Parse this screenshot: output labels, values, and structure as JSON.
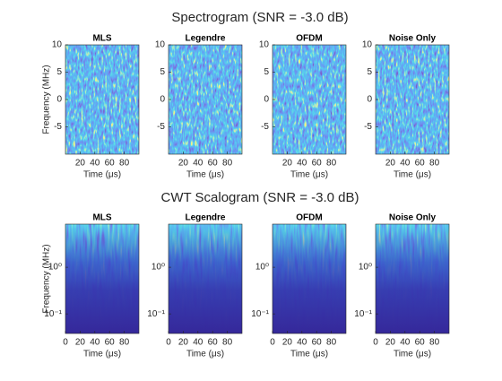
{
  "chart_data": [
    {
      "type": "heatmap",
      "title": "Spectrogram (SNR = -3.0 dB)",
      "subplots": [
        "MLS",
        "Legendre",
        "OFDM",
        "Noise Only"
      ],
      "xlabel": "Time (μs)",
      "ylabel": "Frequency (MHz)",
      "xlim": [
        0,
        100
      ],
      "xticks": [
        20,
        40,
        60,
        80
      ],
      "ylim": [
        -10,
        10
      ],
      "yticks": [
        -5,
        0,
        5,
        10
      ],
      "log_y": false
    },
    {
      "type": "heatmap",
      "title": "CWT Scalogram (SNR = -3.0 dB)",
      "subplots": [
        "MLS",
        "Legendre",
        "OFDM",
        "Noise Only"
      ],
      "xlabel": "Time (μs)",
      "ylabel": "Frequency (MHz)",
      "xlim": [
        0,
        100
      ],
      "xticks": [
        0,
        20,
        40,
        60,
        80
      ],
      "ylim": [
        0.038,
        8.4
      ],
      "yticks": [
        {
          "value": 0.1,
          "label": "10⁻¹"
        },
        {
          "value": 1,
          "label": "10⁰"
        }
      ],
      "log_y": true
    }
  ]
}
